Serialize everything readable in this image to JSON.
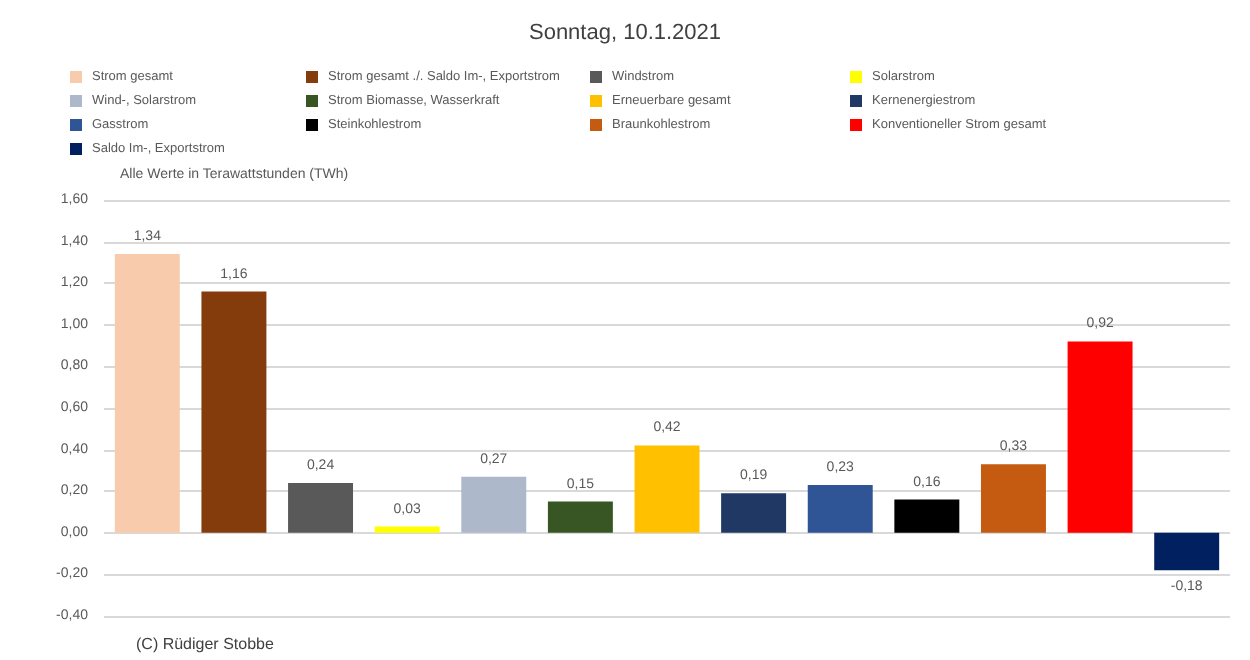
{
  "chart_data": {
    "type": "bar",
    "title": "Sonntag, 10.1.2021",
    "ylabel": "Alle Werte in Terawattstunden (TWh)",
    "annotations": [
      "(C) Rüdiger Stobbe"
    ],
    "categories": [
      null,
      null,
      null,
      null,
      null,
      null,
      null,
      null,
      null,
      null,
      null,
      null,
      null
    ],
    "series": [
      {
        "name": "Strom gesamt",
        "color": "#f8cbad",
        "values": [
          1.34,
          null,
          null,
          null,
          null,
          null,
          null,
          null,
          null,
          null,
          null,
          null,
          null
        ],
        "value_labels": [
          "1,34",
          null,
          null,
          null,
          null,
          null,
          null,
          null,
          null,
          null,
          null,
          null,
          null
        ]
      },
      {
        "name": "Strom gesamt ./. Saldo Im-, Exportstrom",
        "color": "#843c0c",
        "values": [
          null,
          1.16,
          null,
          null,
          null,
          null,
          null,
          null,
          null,
          null,
          null,
          null,
          null
        ],
        "value_labels": [
          null,
          "1,16",
          null,
          null,
          null,
          null,
          null,
          null,
          null,
          null,
          null,
          null,
          null
        ]
      },
      {
        "name": "Windstrom",
        "color": "#595959",
        "values": [
          null,
          null,
          0.24,
          null,
          null,
          null,
          null,
          null,
          null,
          null,
          null,
          null,
          null
        ],
        "value_labels": [
          null,
          null,
          "0,24",
          null,
          null,
          null,
          null,
          null,
          null,
          null,
          null,
          null,
          null
        ]
      },
      {
        "name": "Solarstrom",
        "color": "#ffff00",
        "values": [
          null,
          null,
          null,
          0.03,
          null,
          null,
          null,
          null,
          null,
          null,
          null,
          null,
          null
        ],
        "value_labels": [
          null,
          null,
          null,
          "0,03",
          null,
          null,
          null,
          null,
          null,
          null,
          null,
          null,
          null
        ]
      },
      {
        "name": "Wind-, Solarstrom",
        "color": "#adb9ca",
        "values": [
          null,
          null,
          null,
          null,
          0.27,
          null,
          null,
          null,
          null,
          null,
          null,
          null,
          null
        ],
        "value_labels": [
          null,
          null,
          null,
          null,
          "0,27",
          null,
          null,
          null,
          null,
          null,
          null,
          null,
          null
        ]
      },
      {
        "name": "Strom Biomasse, Wasserkraft",
        "color": "#375623",
        "values": [
          null,
          null,
          null,
          null,
          null,
          0.15,
          null,
          null,
          null,
          null,
          null,
          null,
          null
        ],
        "value_labels": [
          null,
          null,
          null,
          null,
          null,
          "0,15",
          null,
          null,
          null,
          null,
          null,
          null,
          null
        ]
      },
      {
        "name": "Erneuerbare gesamt",
        "color": "#ffc000",
        "values": [
          null,
          null,
          null,
          null,
          null,
          null,
          0.42,
          null,
          null,
          null,
          null,
          null,
          null
        ],
        "value_labels": [
          null,
          null,
          null,
          null,
          null,
          null,
          "0,42",
          null,
          null,
          null,
          null,
          null,
          null
        ]
      },
      {
        "name": "Kernenergiestrom",
        "color": "#203864",
        "values": [
          null,
          null,
          null,
          null,
          null,
          null,
          null,
          0.19,
          null,
          null,
          null,
          null,
          null
        ],
        "value_labels": [
          null,
          null,
          null,
          null,
          null,
          null,
          null,
          "0,19",
          null,
          null,
          null,
          null,
          null
        ]
      },
      {
        "name": "Gasstrom",
        "color": "#2f5597",
        "values": [
          null,
          null,
          null,
          null,
          null,
          null,
          null,
          null,
          0.23,
          null,
          null,
          null,
          null
        ],
        "value_labels": [
          null,
          null,
          null,
          null,
          null,
          null,
          null,
          null,
          "0,23",
          null,
          null,
          null,
          null
        ]
      },
      {
        "name": "Steinkohlestrom",
        "color": "#000000",
        "values": [
          null,
          null,
          null,
          null,
          null,
          null,
          null,
          null,
          null,
          0.16,
          null,
          null,
          null
        ],
        "value_labels": [
          null,
          null,
          null,
          null,
          null,
          null,
          null,
          null,
          null,
          "0,16",
          null,
          null,
          null
        ]
      },
      {
        "name": "Braunkohlestrom",
        "color": "#c55a11",
        "values": [
          null,
          null,
          null,
          null,
          null,
          null,
          null,
          null,
          null,
          null,
          0.33,
          null,
          null
        ],
        "value_labels": [
          null,
          null,
          null,
          null,
          null,
          null,
          null,
          null,
          null,
          null,
          "0,33",
          null,
          null
        ]
      },
      {
        "name": "Konventioneller Strom gesamt",
        "color": "#ff0000",
        "values": [
          null,
          null,
          null,
          null,
          null,
          null,
          null,
          null,
          null,
          null,
          null,
          0.92,
          null
        ],
        "value_labels": [
          null,
          null,
          null,
          null,
          null,
          null,
          null,
          null,
          null,
          null,
          null,
          "0,92",
          null
        ]
      },
      {
        "name": "Saldo Im-, Exportstrom",
        "color": "#002060",
        "values": [
          null,
          null,
          null,
          null,
          null,
          null,
          null,
          null,
          null,
          null,
          null,
          null,
          -0.18
        ],
        "value_labels": [
          null,
          null,
          null,
          null,
          null,
          null,
          null,
          null,
          null,
          null,
          null,
          null,
          "-0,18"
        ]
      }
    ],
    "ylim": [
      -0.4,
      1.6
    ],
    "yticks": [
      {
        "value": -0.4,
        "label": "-0,40"
      },
      {
        "value": -0.2,
        "label": "-0,20"
      },
      {
        "value": 0,
        "label": "0,00"
      },
      {
        "value": 0.2,
        "label": "0,20"
      },
      {
        "value": 0.4,
        "label": "0,40"
      },
      {
        "value": 0.6,
        "label": "0,60"
      },
      {
        "value": 0.8,
        "label": "0,80"
      },
      {
        "value": 1.0,
        "label": "1,00"
      },
      {
        "value": 1.2,
        "label": "1,20"
      },
      {
        "value": 1.4,
        "label": "1,40"
      },
      {
        "value": 1.6,
        "label": "1,60"
      }
    ],
    "grid": "y",
    "legend": "top"
  }
}
